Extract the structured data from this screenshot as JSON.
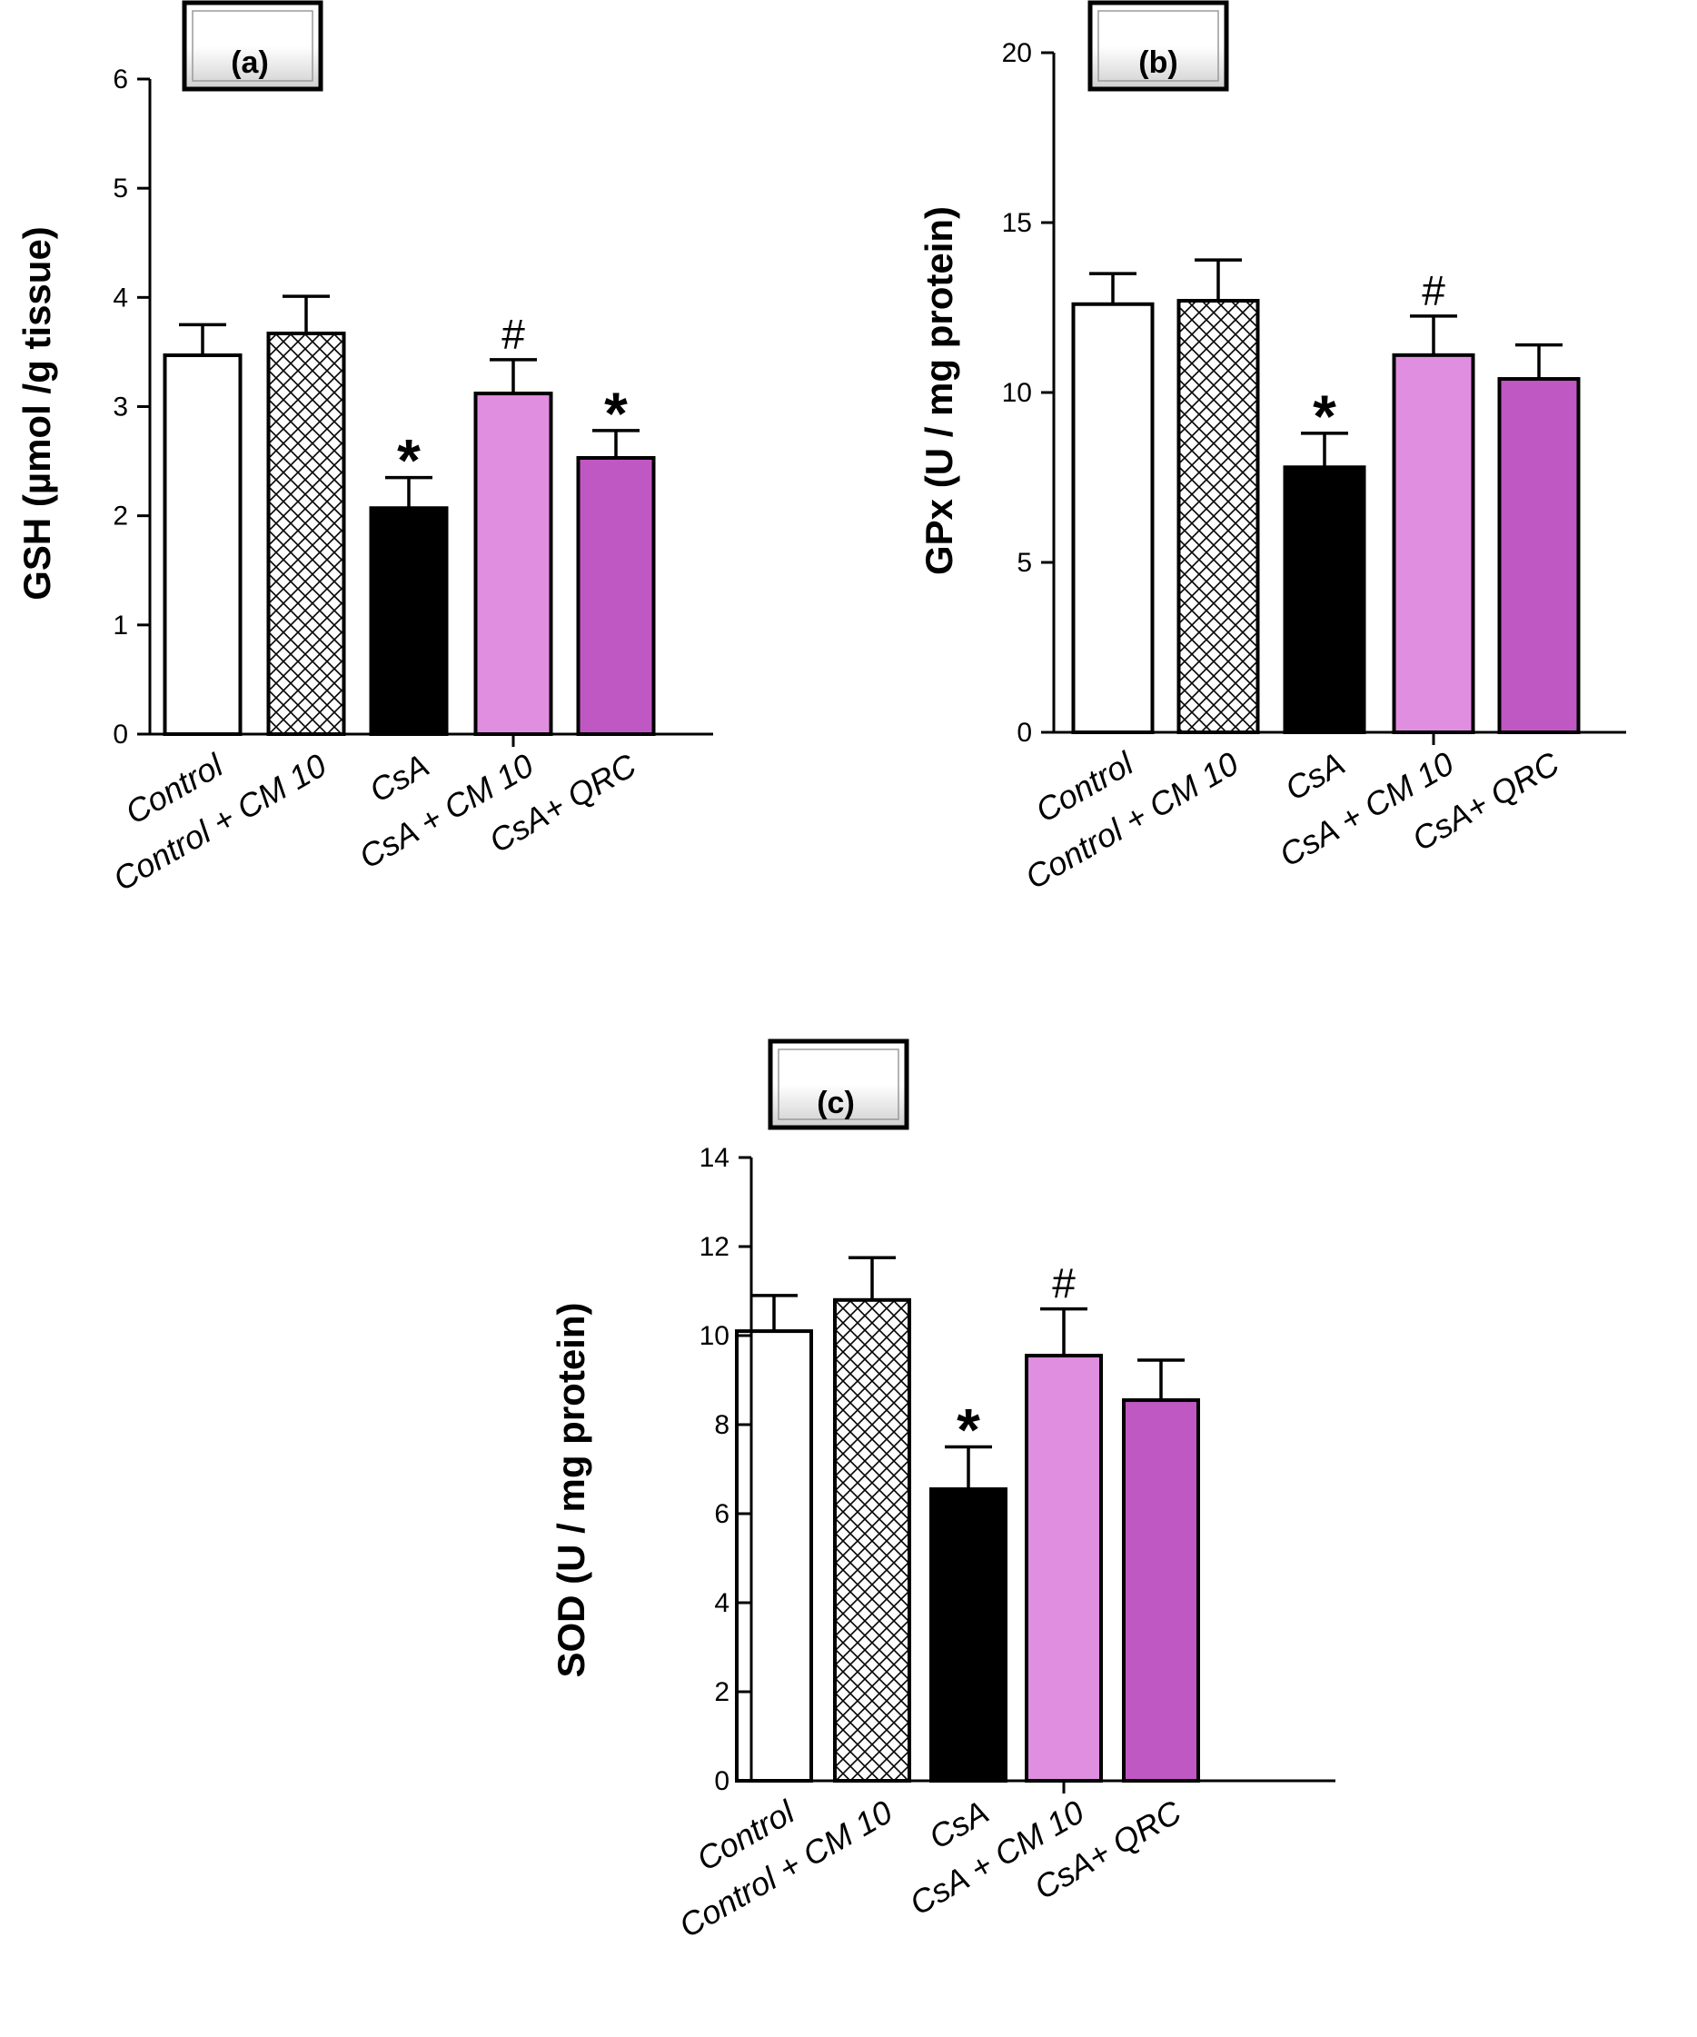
{
  "colors": {
    "control": "#ffffff",
    "csa": "#000000",
    "csa_cm10": "#e08ee0",
    "csa_qrc": "#c058c3",
    "axis": "#000000",
    "panel_label_bg_top": "#ffffff",
    "panel_label_bg_bottom": "#cfcfcf"
  },
  "chart_data": [
    {
      "type": "bar",
      "panel_label": "(a)",
      "ylabel": "GSH  (µmol /g tissue)",
      "categories": [
        "Control",
        "Control +  CM 10",
        "CsA",
        "CsA + CM 10",
        "CsA+ QRC"
      ],
      "values": [
        3.47,
        3.67,
        2.07,
        3.12,
        2.53
      ],
      "errors": [
        0.28,
        0.34,
        0.28,
        0.31,
        0.25
      ],
      "annotations": [
        "",
        "",
        "*",
        "#",
        "*"
      ],
      "fills": [
        "white",
        "crosshatch",
        "black",
        "light-pink",
        "magenta"
      ],
      "ylim": [
        0,
        6
      ],
      "yticks": [
        "0",
        "1",
        "2",
        "3",
        "4",
        "5",
        "6"
      ]
    },
    {
      "type": "bar",
      "panel_label": "(b)",
      "ylabel": "GPx  (U / mg protein)",
      "categories": [
        "Control",
        "Control +  CM 10",
        "CsA",
        "CsA + CM 10",
        "CsA+ QRC"
      ],
      "values": [
        12.6,
        12.7,
        7.8,
        11.1,
        10.4
      ],
      "errors": [
        0.9,
        1.2,
        1.0,
        1.15,
        1.0
      ],
      "annotations": [
        "",
        "",
        "*",
        "#",
        ""
      ],
      "fills": [
        "white",
        "crosshatch",
        "black",
        "light-pink",
        "magenta"
      ],
      "ylim": [
        0,
        20
      ],
      "yticks": [
        "0",
        "5",
        "10",
        "15",
        "20"
      ]
    },
    {
      "type": "bar",
      "panel_label": "(c)",
      "ylabel": "SOD  (U / mg protein)",
      "categories": [
        "Control",
        "Control +  CM 10",
        "CsA",
        "CsA + CM 10",
        "CsA+ QRC"
      ],
      "values": [
        10.1,
        10.8,
        6.55,
        9.55,
        8.55
      ],
      "errors": [
        0.8,
        0.95,
        0.95,
        1.05,
        0.9
      ],
      "annotations": [
        "",
        "",
        "*",
        "#",
        ""
      ],
      "fills": [
        "white",
        "crosshatch",
        "black",
        "light-pink",
        "magenta"
      ],
      "ylim": [
        0,
        14
      ],
      "yticks": [
        "0",
        "2",
        "4",
        "6",
        "8",
        "10",
        "12",
        "14"
      ]
    }
  ]
}
